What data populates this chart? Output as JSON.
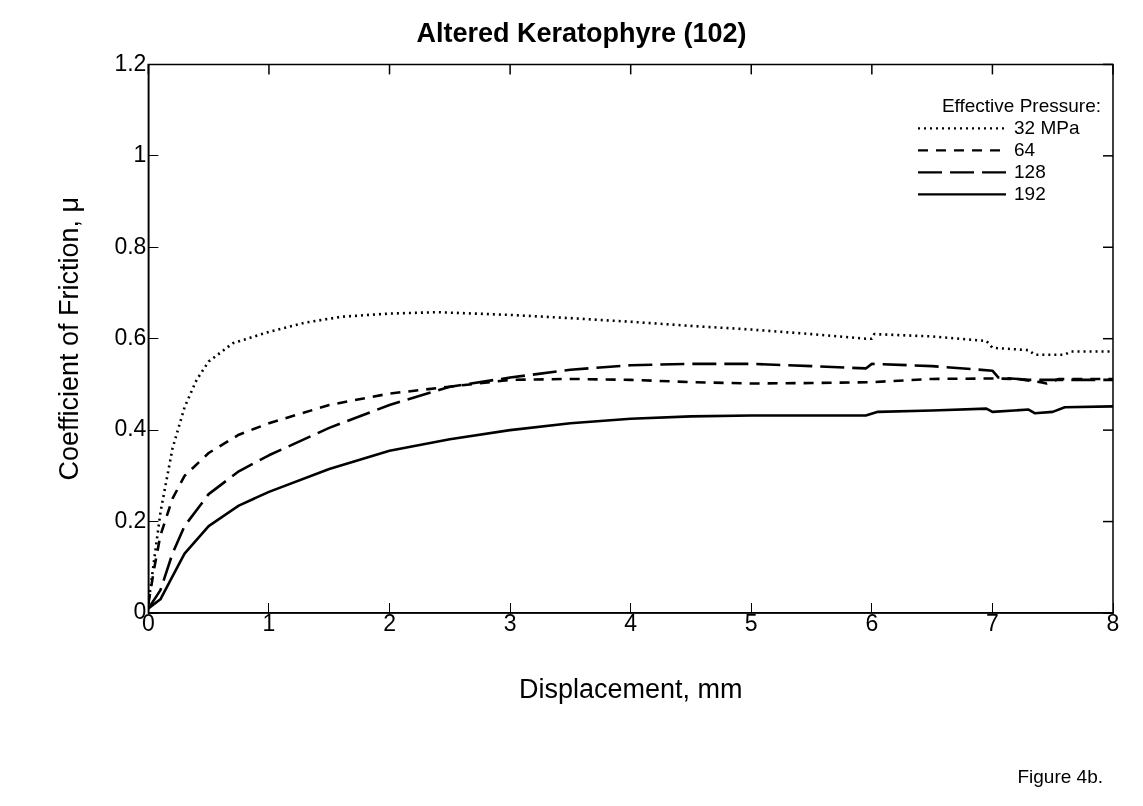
{
  "chart_data": {
    "type": "line",
    "title": "Altered Keratophyre (102)",
    "xlabel": "Displacement, mm",
    "ylabel": "Coefficient of Friction, μ",
    "legend_title": "Effective Pressure:",
    "annotations": [
      "Figure 4b."
    ],
    "xlim": [
      0,
      8
    ],
    "xticks": [
      0,
      1,
      2,
      3,
      4,
      5,
      6,
      7,
      8
    ],
    "ylim": [
      0,
      1.2
    ],
    "yticks": [
      0,
      {
        "value": 0.2,
        "label": "0.2"
      },
      {
        "value": 0.4,
        "label": "0.4"
      },
      {
        "value": 0.6,
        "label": "0.6"
      },
      {
        "value": 0.8,
        "label": "0.8"
      },
      1,
      {
        "value": 1.2,
        "label": "1.2"
      }
    ],
    "grid": false,
    "legend": "top right",
    "marker": "none",
    "series": [
      {
        "name": "32 MPa",
        "color": "#000000",
        "line_style": "dotted",
        "x": [
          0,
          0.05,
          0.1,
          0.2,
          0.3,
          0.4,
          0.5,
          0.7,
          1,
          1.3,
          1.6,
          2,
          2.4,
          3,
          3.5,
          4,
          4.5,
          5,
          5.5,
          5.95,
          6,
          6.02,
          6.5,
          6.95,
          7,
          7.3,
          7.35,
          7.6,
          7.65,
          8
        ],
        "values": [
          0.02,
          0.12,
          0.22,
          0.36,
          0.45,
          0.51,
          0.55,
          0.59,
          0.615,
          0.635,
          0.648,
          0.655,
          0.658,
          0.652,
          0.645,
          0.637,
          0.628,
          0.62,
          0.61,
          0.6,
          0.6,
          0.61,
          0.605,
          0.595,
          0.58,
          0.575,
          0.565,
          0.565,
          0.572,
          0.572
        ]
      },
      {
        "name": "64",
        "color": "#000000",
        "line_style": "dashed",
        "x": [
          0,
          0.05,
          0.1,
          0.2,
          0.3,
          0.5,
          0.75,
          1,
          1.5,
          2,
          2.5,
          3,
          3.5,
          4,
          4.5,
          5,
          5.5,
          6,
          6.5,
          7,
          7.2,
          7.4,
          7.45,
          7.55,
          8
        ],
        "values": [
          0.02,
          0.1,
          0.17,
          0.25,
          0.3,
          0.35,
          0.39,
          0.415,
          0.455,
          0.48,
          0.495,
          0.51,
          0.512,
          0.51,
          0.505,
          0.502,
          0.503,
          0.505,
          0.512,
          0.513,
          0.512,
          0.505,
          0.502,
          0.512,
          0.512
        ]
      },
      {
        "name": "128",
        "color": "#000000",
        "line_style": "dashed",
        "x": [
          0,
          0.1,
          0.2,
          0.3,
          0.5,
          0.75,
          1,
          1.5,
          2,
          2.5,
          3,
          3.5,
          4,
          4.5,
          5,
          5.5,
          5.95,
          6,
          6.5,
          7,
          7.05,
          7.3,
          7.5,
          8
        ],
        "values": [
          0.01,
          0.05,
          0.13,
          0.19,
          0.26,
          0.31,
          0.345,
          0.405,
          0.455,
          0.495,
          0.515,
          0.532,
          0.542,
          0.545,
          0.545,
          0.54,
          0.535,
          0.545,
          0.54,
          0.53,
          0.515,
          0.51,
          0.51,
          0.51
        ]
      },
      {
        "name": "192",
        "color": "#000000",
        "line_style": "solid",
        "x": [
          0,
          0.1,
          0.2,
          0.3,
          0.5,
          0.75,
          1,
          1.5,
          2,
          2.5,
          3,
          3.5,
          4,
          4.5,
          5,
          5.5,
          5.95,
          6.05,
          6.5,
          6.95,
          7,
          7.3,
          7.35,
          7.5,
          7.6,
          8
        ],
        "values": [
          0.01,
          0.03,
          0.08,
          0.13,
          0.19,
          0.235,
          0.265,
          0.315,
          0.355,
          0.38,
          0.4,
          0.415,
          0.425,
          0.43,
          0.432,
          0.432,
          0.432,
          0.44,
          0.443,
          0.447,
          0.44,
          0.445,
          0.437,
          0.44,
          0.45,
          0.452
        ]
      }
    ]
  }
}
